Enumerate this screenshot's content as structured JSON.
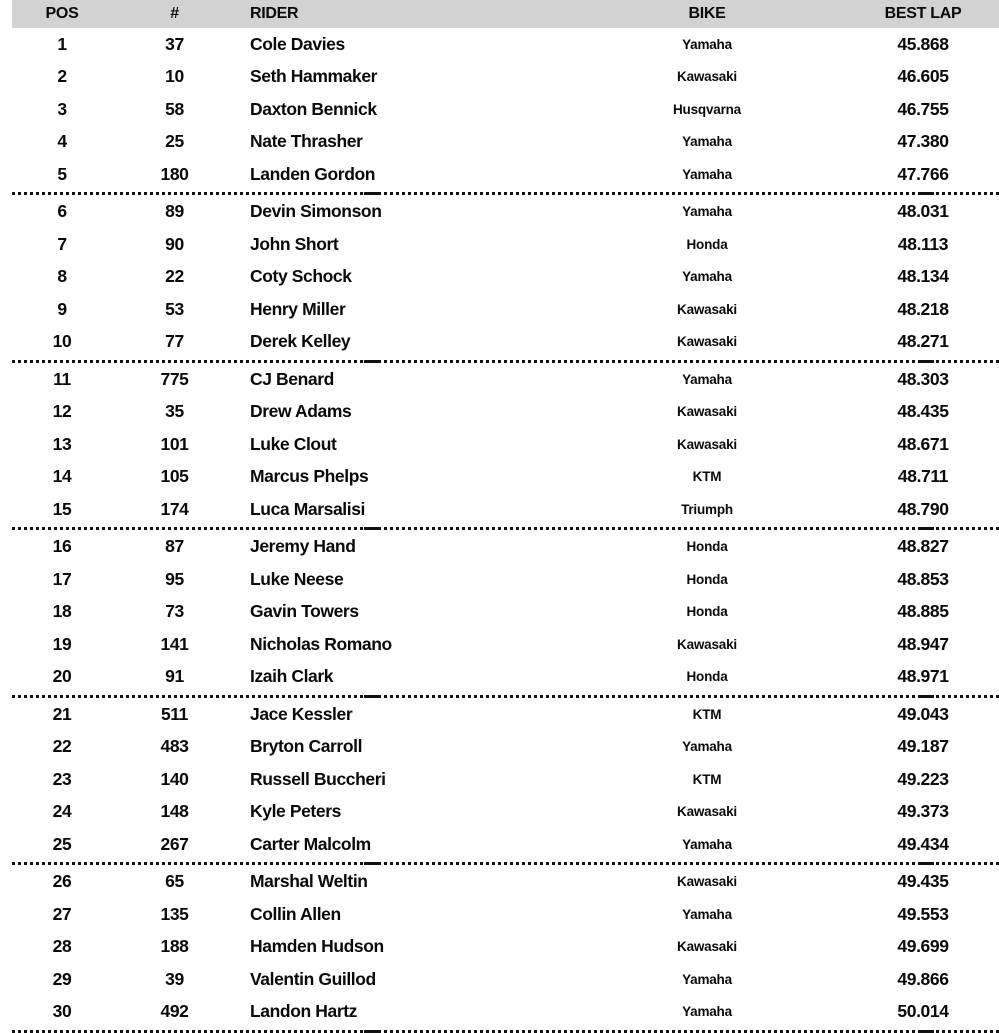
{
  "table": {
    "columns": {
      "pos": "POS",
      "num": "#",
      "rider": "RIDER",
      "bike": "BIKE",
      "best_lap": "BEST LAP"
    },
    "divider_every": 5,
    "rows": [
      {
        "pos": "1",
        "num": "37",
        "rider": "Cole Davies",
        "bike": "Yamaha",
        "best_lap": "45.868"
      },
      {
        "pos": "2",
        "num": "10",
        "rider": "Seth Hammaker",
        "bike": "Kawasaki",
        "best_lap": "46.605"
      },
      {
        "pos": "3",
        "num": "58",
        "rider": "Daxton Bennick",
        "bike": "Husqvarna",
        "best_lap": "46.755"
      },
      {
        "pos": "4",
        "num": "25",
        "rider": "Nate Thrasher",
        "bike": "Yamaha",
        "best_lap": "47.380"
      },
      {
        "pos": "5",
        "num": "180",
        "rider": "Landen Gordon",
        "bike": "Yamaha",
        "best_lap": "47.766"
      },
      {
        "pos": "6",
        "num": "89",
        "rider": "Devin Simonson",
        "bike": "Yamaha",
        "best_lap": "48.031"
      },
      {
        "pos": "7",
        "num": "90",
        "rider": "John Short",
        "bike": "Honda",
        "best_lap": "48.113"
      },
      {
        "pos": "8",
        "num": "22",
        "rider": "Coty Schock",
        "bike": "Yamaha",
        "best_lap": "48.134"
      },
      {
        "pos": "9",
        "num": "53",
        "rider": "Henry Miller",
        "bike": "Kawasaki",
        "best_lap": "48.218"
      },
      {
        "pos": "10",
        "num": "77",
        "rider": "Derek Kelley",
        "bike": "Kawasaki",
        "best_lap": "48.271"
      },
      {
        "pos": "11",
        "num": "775",
        "rider": "CJ Benard",
        "bike": "Yamaha",
        "best_lap": "48.303"
      },
      {
        "pos": "12",
        "num": "35",
        "rider": "Drew Adams",
        "bike": "Kawasaki",
        "best_lap": "48.435"
      },
      {
        "pos": "13",
        "num": "101",
        "rider": "Luke Clout",
        "bike": "Kawasaki",
        "best_lap": "48.671"
      },
      {
        "pos": "14",
        "num": "105",
        "rider": "Marcus Phelps",
        "bike": "KTM",
        "best_lap": "48.711"
      },
      {
        "pos": "15",
        "num": "174",
        "rider": "Luca Marsalisi",
        "bike": "Triumph",
        "best_lap": "48.790"
      },
      {
        "pos": "16",
        "num": "87",
        "rider": "Jeremy Hand",
        "bike": "Honda",
        "best_lap": "48.827"
      },
      {
        "pos": "17",
        "num": "95",
        "rider": "Luke Neese",
        "bike": "Honda",
        "best_lap": "48.853"
      },
      {
        "pos": "18",
        "num": "73",
        "rider": "Gavin Towers",
        "bike": "Honda",
        "best_lap": "48.885"
      },
      {
        "pos": "19",
        "num": "141",
        "rider": "Nicholas Romano",
        "bike": "Kawasaki",
        "best_lap": "48.947"
      },
      {
        "pos": "20",
        "num": "91",
        "rider": "Izaih Clark",
        "bike": "Honda",
        "best_lap": "48.971"
      },
      {
        "pos": "21",
        "num": "511",
        "rider": "Jace Kessler",
        "bike": "KTM",
        "best_lap": "49.043"
      },
      {
        "pos": "22",
        "num": "483",
        "rider": "Bryton Carroll",
        "bike": "Yamaha",
        "best_lap": "49.187"
      },
      {
        "pos": "23",
        "num": "140",
        "rider": "Russell Buccheri",
        "bike": "KTM",
        "best_lap": "49.223"
      },
      {
        "pos": "24",
        "num": "148",
        "rider": "Kyle Peters",
        "bike": "Kawasaki",
        "best_lap": "49.373"
      },
      {
        "pos": "25",
        "num": "267",
        "rider": "Carter Malcolm",
        "bike": "Yamaha",
        "best_lap": "49.434"
      },
      {
        "pos": "26",
        "num": "65",
        "rider": "Marshal Weltin",
        "bike": "Kawasaki",
        "best_lap": "49.435"
      },
      {
        "pos": "27",
        "num": "135",
        "rider": "Collin Allen",
        "bike": "Yamaha",
        "best_lap": "49.553"
      },
      {
        "pos": "28",
        "num": "188",
        "rider": "Hamden Hudson",
        "bike": "Kawasaki",
        "best_lap": "49.699"
      },
      {
        "pos": "29",
        "num": "39",
        "rider": "Valentin Guillod",
        "bike": "Yamaha",
        "best_lap": "49.866"
      },
      {
        "pos": "30",
        "num": "492",
        "rider": "Landon Hartz",
        "bike": "Yamaha",
        "best_lap": "50.014"
      }
    ]
  },
  "colors": {
    "header_bg": "#d2d2d2",
    "text": "#0a0a0a",
    "divider": "#111111",
    "page_bg": "#ffffff"
  }
}
